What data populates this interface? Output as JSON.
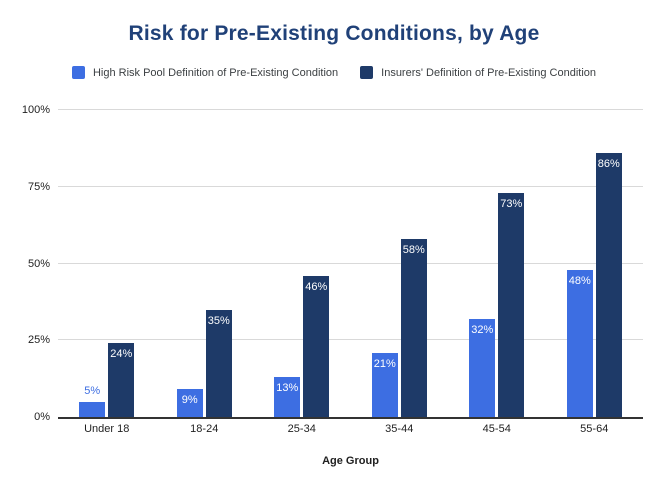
{
  "colors": {
    "background": "#ffffff",
    "title": "#204178",
    "legend_text": "#3c4043",
    "tick_text": "#1f1f1f",
    "x_axis_title": "#1f1f1f",
    "grid": "#d9d9d9",
    "axis_line": "#333333",
    "bar_label_inside": "#ffffff"
  },
  "chart_data": {
    "type": "bar",
    "title": "Risk for Pre-Existing Conditions, by Age",
    "xlabel": "Age Group",
    "ylabel": "",
    "ylim": [
      0,
      100
    ],
    "grid": true,
    "legend_position": "top",
    "value_label_format": "{v}%",
    "categories": [
      "Under 18",
      "18-24",
      "25-34",
      "35-44",
      "45-54",
      "55-64"
    ],
    "yticks": [
      {
        "value": 0,
        "label": "0%"
      },
      {
        "value": 25,
        "label": "25%"
      },
      {
        "value": 50,
        "label": "50%"
      },
      {
        "value": 75,
        "label": "75%"
      },
      {
        "value": 100,
        "label": "100%"
      }
    ],
    "series": [
      {
        "name": "High Risk Pool Definition of Pre-Existing Condition",
        "color": "#3d6ee2",
        "values": [
          5,
          9,
          13,
          21,
          32,
          48
        ]
      },
      {
        "name": "Insurers' Definition of Pre-Existing Condition",
        "color": "#1e3a68",
        "values": [
          24,
          35,
          46,
          58,
          73,
          86
        ]
      }
    ]
  }
}
